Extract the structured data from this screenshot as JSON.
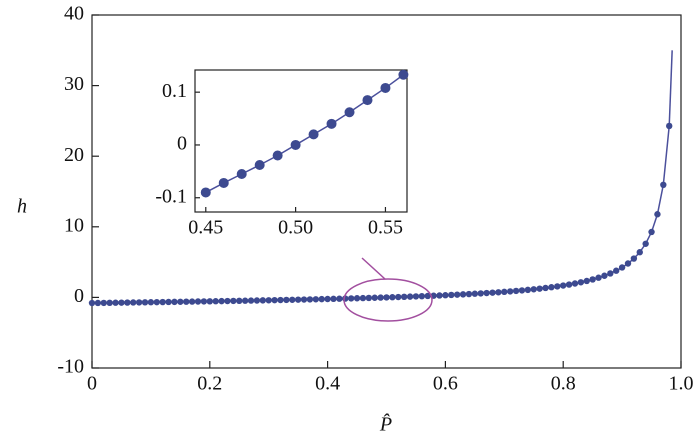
{
  "chart_data": [
    {
      "type": "scatter",
      "xlabel": "P̂",
      "ylabel": "h",
      "color": "#3d4a90",
      "line_color": "#4b509c",
      "xlim": [
        0,
        1
      ],
      "ylim": [
        -10,
        40
      ],
      "xticks": [
        0,
        0.2,
        0.4,
        0.6,
        0.8,
        {
          "value": 1,
          "label": "1.0"
        }
      ],
      "yticks": [
        -10,
        0,
        10,
        20,
        30,
        40
      ],
      "x": [
        0,
        0.01,
        0.02,
        0.03,
        0.04,
        0.05,
        0.06,
        0.07,
        0.08,
        0.09,
        0.1,
        0.11,
        0.12,
        0.13,
        0.14,
        0.15,
        0.16,
        0.17,
        0.18,
        0.19,
        0.2,
        0.21,
        0.22,
        0.23,
        0.24,
        0.25,
        0.26,
        0.27,
        0.28,
        0.29,
        0.3,
        0.31,
        0.32,
        0.33,
        0.34,
        0.35,
        0.36,
        0.37,
        0.38,
        0.39,
        0.4,
        0.41,
        0.42,
        0.43,
        0.44,
        0.45,
        0.46,
        0.47,
        0.48,
        0.49,
        0.5,
        0.51,
        0.52,
        0.53,
        0.54,
        0.55,
        0.56,
        0.57,
        0.58,
        0.59,
        0.6,
        0.61,
        0.62,
        0.63,
        0.64,
        0.65,
        0.66,
        0.67,
        0.68,
        0.69,
        0.7,
        0.71,
        0.72,
        0.73,
        0.74,
        0.75,
        0.76,
        0.77,
        0.78,
        0.79,
        0.8,
        0.81,
        0.82,
        0.83,
        0.84,
        0.85,
        0.86,
        0.87,
        0.88,
        0.89,
        0.9,
        0.91,
        0.92,
        0.93,
        0.94,
        0.95,
        0.96,
        0.97,
        0.98
      ],
      "values": [
        -0.8,
        -0.789,
        -0.778,
        -0.767,
        -0.755,
        -0.744,
        -0.732,
        -0.72,
        -0.709,
        -0.697,
        -0.684,
        -0.672,
        -0.66,
        -0.647,
        -0.635,
        -0.622,
        -0.609,
        -0.596,
        -0.582,
        -0.569,
        -0.555,
        -0.541,
        -0.527,
        -0.513,
        -0.498,
        -0.483,
        -0.468,
        -0.453,
        -0.438,
        -0.422,
        -0.406,
        -0.389,
        -0.373,
        -0.356,
        -0.338,
        -0.321,
        -0.303,
        -0.284,
        -0.266,
        -0.246,
        -0.227,
        -0.207,
        -0.186,
        -0.165,
        -0.143,
        -0.121,
        -0.098,
        -0.075,
        -0.05,
        -0.026,
        0,
        0.026,
        0.054,
        0.082,
        0.111,
        0.141,
        0.172,
        0.205,
        0.238,
        0.274,
        0.31,
        0.348,
        0.388,
        0.429,
        0.473,
        0.519,
        0.567,
        0.617,
        0.671,
        0.727,
        0.787,
        0.85,
        0.918,
        0.99,
        1.067,
        1.15,
        1.239,
        1.336,
        1.441,
        1.555,
        1.68,
        1.818,
        1.97,
        2.139,
        2.329,
        2.543,
        2.787,
        3.068,
        3.395,
        3.779,
        4.24,
        4.802,
        5.502,
        6.401,
        7.597,
        9.27,
        11.776,
        15.949,
        24.288
      ],
      "curve_end": {
        "x": 0.985,
        "value": 35
      }
    },
    {
      "type": "scatter",
      "color": "#3d4a90",
      "line_color": "#4b509c",
      "xlim": [
        0.444,
        0.562
      ],
      "ylim": [
        -0.127,
        0.142
      ],
      "xticks": [
        0.45,
        {
          "value": 0.5,
          "label": "0.50"
        },
        0.55
      ],
      "yticks": [
        -0.1,
        0,
        0.1
      ],
      "x": [
        0.45,
        0.46,
        0.47,
        0.48,
        0.49,
        0.5,
        0.51,
        0.52,
        0.53,
        0.54,
        0.55,
        0.56
      ],
      "values": [
        -0.09,
        -0.072,
        -0.055,
        -0.038,
        -0.02,
        0,
        0.02,
        0.04,
        0.062,
        0.085,
        0.108,
        0.133
      ]
    }
  ]
}
